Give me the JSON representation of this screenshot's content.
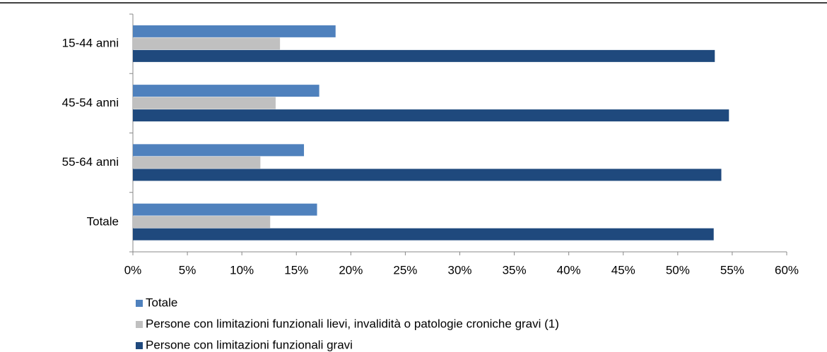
{
  "chart_data": {
    "type": "barh",
    "categories": [
      "15-44 anni",
      "45-54 anni",
      "55-64 anni",
      "Totale"
    ],
    "series": [
      {
        "name": "Totale",
        "color": "#4f81bd",
        "values": [
          18.6,
          17.1,
          15.7,
          16.9
        ]
      },
      {
        "name": "Persone con limitazioni funzionali lievi, invalidità o patologie croniche gravi (1)",
        "color": "#c0c0c0",
        "values": [
          13.5,
          13.1,
          11.7,
          12.6
        ]
      },
      {
        "name": "Persone con limitazioni funzionali gravi",
        "color": "#1f497d",
        "values": [
          53.4,
          54.7,
          54.0,
          53.3
        ]
      }
    ],
    "xlim": [
      0,
      60
    ],
    "xticks": [
      {
        "value": 0,
        "label": "0%"
      },
      {
        "value": 5,
        "label": "5%"
      },
      {
        "value": 10,
        "label": "10%"
      },
      {
        "value": 15,
        "label": "15%"
      },
      {
        "value": 20,
        "label": "20%"
      },
      {
        "value": 25,
        "label": "25%"
      },
      {
        "value": 30,
        "label": "30%"
      },
      {
        "value": 35,
        "label": "35%"
      },
      {
        "value": 40,
        "label": "40%"
      },
      {
        "value": 45,
        "label": "45%"
      },
      {
        "value": 50,
        "label": "50%"
      },
      {
        "value": 55,
        "label": "55%"
      },
      {
        "value": 60,
        "label": "60%"
      }
    ],
    "legend": "bottom"
  }
}
